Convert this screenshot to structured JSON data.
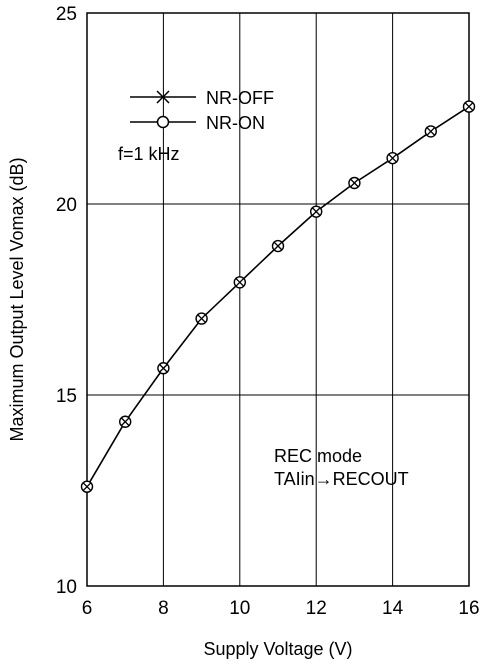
{
  "chart_data": {
    "type": "line",
    "xlabel": "Supply Voltage  (V)",
    "ylabel": "Maximum Output Level Vomax  (dB)",
    "xlim": [
      6,
      16
    ],
    "ylim": [
      10,
      25
    ],
    "xticks": [
      6,
      8,
      10,
      12,
      14,
      16
    ],
    "yticks": [
      10,
      15,
      20,
      25
    ],
    "xtick_labels": [
      "6",
      "8",
      "10",
      "12",
      "14",
      "16"
    ],
    "ytick_labels": [
      "10",
      "15",
      "20",
      "25"
    ],
    "grid": true,
    "series": [
      {
        "name": "NR-OFF",
        "marker": "x",
        "x": [
          6,
          7,
          8,
          9,
          10,
          11,
          12,
          13,
          14,
          15,
          16
        ],
        "y": [
          12.6,
          14.3,
          15.7,
          17.0,
          17.95,
          18.9,
          19.8,
          20.55,
          21.2,
          21.9,
          22.55
        ]
      },
      {
        "name": "NR-ON",
        "marker": "o",
        "x": [
          6,
          7,
          8,
          9,
          10,
          11,
          12,
          13,
          14,
          15,
          16
        ],
        "y": [
          12.6,
          14.3,
          15.7,
          17.0,
          17.95,
          18.9,
          19.8,
          20.55,
          21.2,
          21.9,
          22.55
        ]
      }
    ],
    "legend_position": "top-left",
    "annotations": {
      "condition": "f=1 kHz",
      "mode_line1": "REC mode",
      "mode_line2": "TAIin→RECOUT"
    }
  }
}
